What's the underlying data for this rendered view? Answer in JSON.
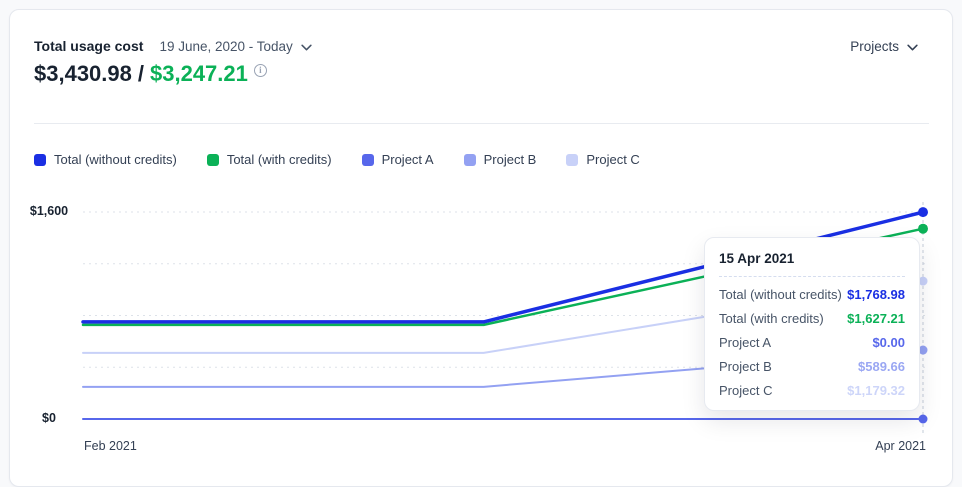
{
  "header": {
    "title": "Total usage cost",
    "date_range": "19 June, 2020 - Today",
    "projects_label": "Projects"
  },
  "summary": {
    "total_without_credits": "$3,430.98",
    "separator": "/",
    "total_with_credits": "$3,247.21"
  },
  "icons": {
    "date_range_chevron": "chevron-down",
    "projects_chevron": "chevron-down",
    "info": "info-circle"
  },
  "colors": {
    "accent_blue": "#1a2fe3",
    "accent_green": "#0bb157",
    "project_a": "#5767eb",
    "project_b": "#93a1f2",
    "project_c": "#c8d1f8",
    "gridline": "#dde2e9",
    "hover_line": "#c4cdd9",
    "text_dark": "#182230",
    "text_gray": "#475467"
  },
  "chart_data": {
    "type": "line",
    "title": "Total usage cost",
    "x_tick_labels": [
      "Feb 2021",
      "Apr 2021"
    ],
    "y_tick_labels": [
      "$1,600",
      "$0"
    ],
    "y_min": 0,
    "y_max": 1770,
    "grid": "horizontal-dashed",
    "legend_position": "top",
    "hover_x": 1,
    "series": [
      {
        "name": "Total (without credits)",
        "color": "#1a2fe3",
        "stroke_width": 3.5,
        "dot_radius": 5,
        "points": [
          {
            "x": 0,
            "y": 830
          },
          {
            "x": 0.477,
            "y": 830
          },
          {
            "x": 1,
            "y": 1768.98
          }
        ]
      },
      {
        "name": "Total (with credits)",
        "color": "#0bb157",
        "stroke_width": 2.5,
        "dot_radius": 5,
        "points": [
          {
            "x": 0,
            "y": 805
          },
          {
            "x": 0.477,
            "y": 805
          },
          {
            "x": 1,
            "y": 1627.21
          }
        ]
      },
      {
        "name": "Project A",
        "color": "#5767eb",
        "stroke_width": 2,
        "dot_radius": 4.5,
        "points": [
          {
            "x": 0,
            "y": 0
          },
          {
            "x": 1,
            "y": 0
          }
        ]
      },
      {
        "name": "Project B",
        "color": "#93a1f2",
        "stroke_width": 2,
        "dot_radius": 4.5,
        "points": [
          {
            "x": 0,
            "y": 275
          },
          {
            "x": 0.477,
            "y": 275
          },
          {
            "x": 1,
            "y": 589.66
          }
        ]
      },
      {
        "name": "Project C",
        "color": "#c8d1f8",
        "stroke_width": 2,
        "dot_radius": 4.5,
        "points": [
          {
            "x": 0,
            "y": 565
          },
          {
            "x": 0.477,
            "y": 565
          },
          {
            "x": 1,
            "y": 1179.32
          }
        ]
      }
    ]
  },
  "tooltip": {
    "date": "15 Apr 2021",
    "rows": [
      {
        "label": "Total (without credits)",
        "value": "$1,768.98",
        "color": "#1a2fe3"
      },
      {
        "label": "Total (with credits)",
        "value": "$1,627.21",
        "color": "#0bb157"
      },
      {
        "label": "Project A",
        "value": "$0.00",
        "color": "#5767eb"
      },
      {
        "label": "Project B",
        "value": "$589.66",
        "color": "#9aa7f3"
      },
      {
        "label": "Project C",
        "value": "$1,179.32",
        "color": "#cdd5f9"
      }
    ]
  }
}
